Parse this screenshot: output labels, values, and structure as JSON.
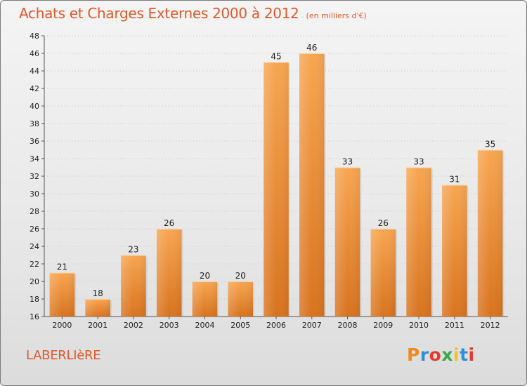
{
  "title": "Achats et Charges Externes 2000 à 2012",
  "unit_note": "(en milliers d'€)",
  "commune": "LABERLIèRE",
  "logo": {
    "letters": [
      "P",
      "r",
      "o",
      "x",
      "i",
      "t",
      "i"
    ],
    "colors": [
      "#f08a1c",
      "#2f8fd6",
      "#e53b2c",
      "#3aa64a",
      "#f3c21b",
      "#2f8fd6",
      "#e53b2c"
    ]
  },
  "colors": {
    "accent": "#e0592a",
    "bar_light": "#f5a14d",
    "bar_dark": "#d87423"
  },
  "chart_data": {
    "type": "bar",
    "title": "Achats et Charges Externes 2000 à 2012",
    "subtitle": "(en milliers d'€)",
    "categories": [
      "2000",
      "2001",
      "2002",
      "2003",
      "2004",
      "2005",
      "2006",
      "2007",
      "2008",
      "2009",
      "2010",
      "2011",
      "2012"
    ],
    "values": [
      21,
      18,
      23,
      26,
      20,
      20,
      45,
      46,
      33,
      26,
      33,
      31,
      35
    ],
    "ylim": [
      16,
      48
    ],
    "yticks": [
      16,
      18,
      20,
      22,
      24,
      26,
      28,
      30,
      32,
      34,
      36,
      38,
      40,
      42,
      44,
      46,
      48
    ],
    "grid": true,
    "xlabel": "",
    "ylabel": ""
  }
}
